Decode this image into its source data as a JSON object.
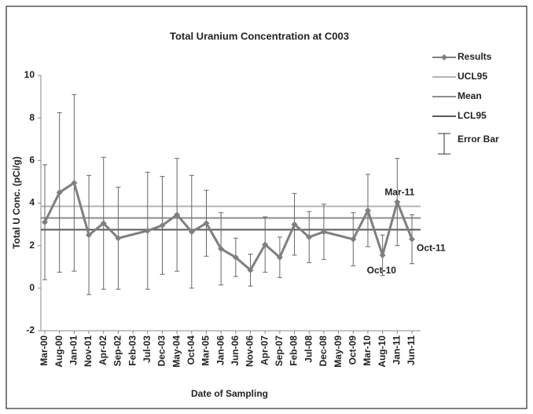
{
  "chart_data": {
    "type": "line",
    "title": "Total Uranium  Concentration  at C003",
    "ylabel": "Total U Conc. (pCi/g)",
    "xlabel": "Date of Sampling",
    "categories": [
      "Mar-00",
      "Aug-00",
      "Jan-01",
      "Nov-01",
      "Apr-02",
      "Sep-02",
      "Feb-03",
      "Jul-03",
      "Dec-03",
      "May-04",
      "Oct-04",
      "Mar-05",
      "Jan-06",
      "Jun-06",
      "Nov-06",
      "Apr-07",
      "Sep-07",
      "Feb-08",
      "Jul-08",
      "Dec-08",
      "May-09",
      "Oct-09",
      "Mar-10",
      "Aug-10",
      "Jan-11",
      "Jun-11"
    ],
    "x": [
      "Mar-00",
      "Aug-00",
      "Jan-01",
      "Nov-01",
      "Apr-02",
      "Sep-02",
      "Jul-03",
      "Dec-03",
      "May-04",
      "Oct-04",
      "Mar-05",
      "Jan-06",
      "Jun-06",
      "Nov-06",
      "Apr-07",
      "Sep-07",
      "Feb-08",
      "Jul-08",
      "Dec-08",
      "Oct-09",
      "Mar-10",
      "Aug-10",
      "Jan-11",
      "Jun-11"
    ],
    "series": [
      {
        "name": "Results",
        "color": "#7f7f7f",
        "values": [
          3.1,
          4.5,
          4.95,
          2.5,
          3.05,
          2.35,
          2.7,
          2.95,
          3.45,
          2.65,
          3.05,
          1.85,
          1.45,
          0.85,
          2.05,
          1.45,
          3.0,
          2.4,
          2.65,
          2.3,
          3.65,
          1.55,
          4.05,
          2.3
        ],
        "errors": [
          2.7,
          3.75,
          4.15,
          2.8,
          3.1,
          2.4,
          2.75,
          2.3,
          2.65,
          2.65,
          1.55,
          1.7,
          0.9,
          0.75,
          1.3,
          0.95,
          1.45,
          1.2,
          1.3,
          1.25,
          1.7,
          0.95,
          2.05,
          1.15
        ]
      },
      {
        "name": "UCL95",
        "color": "#b4b4b4",
        "value": 3.85
      },
      {
        "name": "Mean",
        "color": "#8c8c8c",
        "value": 3.3
      },
      {
        "name": "LCL95",
        "color": "#595959",
        "value": 2.75
      }
    ],
    "error_legend": "Error Bar",
    "annotations": [
      {
        "text": "Mar-11",
        "point": 22
      },
      {
        "text": "Oct-10",
        "point": 21
      },
      {
        "text": "Oct-11",
        "point": 23
      }
    ],
    "ylim": [
      -2,
      10
    ],
    "yticks": [
      -2,
      0,
      2,
      4,
      6,
      8,
      10
    ]
  }
}
